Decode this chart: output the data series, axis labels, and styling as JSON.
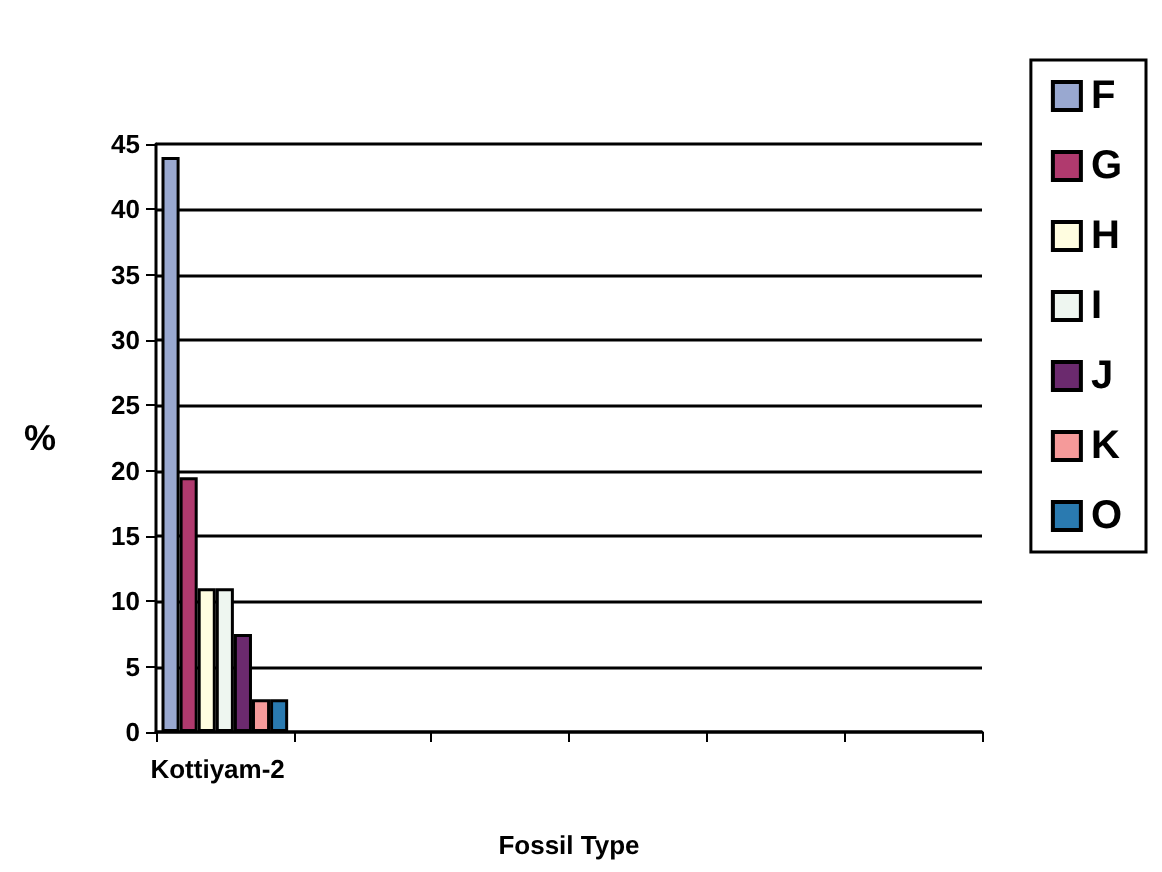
{
  "chart_data": {
    "type": "bar",
    "xlabel": "Fossil Type",
    "ylabel": "%",
    "categories": [
      "Kottiyam-2",
      null,
      null,
      null,
      null,
      null
    ],
    "series": [
      {
        "name": "F",
        "color": "#99a8d0",
        "values": [
          44,
          null,
          null,
          null,
          null,
          null
        ]
      },
      {
        "name": "G",
        "color": "#b03a6e",
        "values": [
          19.5,
          null,
          null,
          null,
          null,
          null
        ]
      },
      {
        "name": "H",
        "color": "#fffde0",
        "values": [
          11,
          null,
          null,
          null,
          null,
          null
        ]
      },
      {
        "name": "I",
        "color": "#eef6f0",
        "values": [
          11,
          null,
          null,
          null,
          null,
          null
        ]
      },
      {
        "name": "J",
        "color": "#6b2a6e",
        "values": [
          7.5,
          null,
          null,
          null,
          null,
          null
        ]
      },
      {
        "name": "K",
        "color": "#f59a9a",
        "values": [
          2.5,
          null,
          null,
          null,
          null,
          null
        ]
      },
      {
        "name": "O",
        "color": "#2a7ab0",
        "values": [
          2.5,
          null,
          null,
          null,
          null,
          null
        ]
      }
    ],
    "ylim": [
      0,
      45
    ],
    "yticks": [
      0,
      5,
      10,
      15,
      20,
      25,
      30,
      35,
      40,
      45
    ],
    "grid": "y",
    "legend": "right"
  }
}
